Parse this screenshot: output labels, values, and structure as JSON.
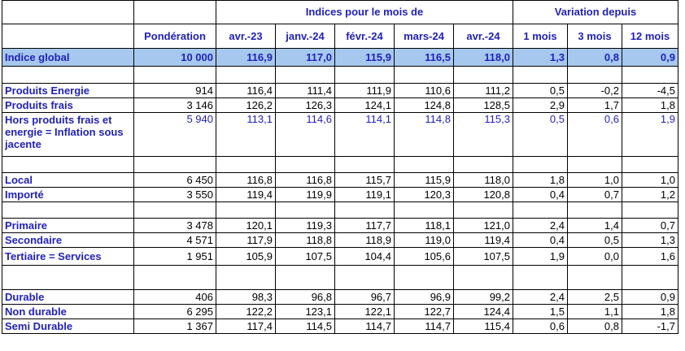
{
  "header": {
    "group_indices": "Indices pour le mois de",
    "group_variation": "Variation depuis",
    "columns": [
      "Pondération",
      "avr.-23",
      "janv.-24",
      "févr.-24",
      "mars-24",
      "avr.-24",
      "1 mois",
      "3 mois",
      "12 mois"
    ]
  },
  "rows": {
    "global": {
      "label": "Indice global",
      "values": [
        "10 000",
        "116,9",
        "117,0",
        "115,9",
        "116,5",
        "118,0",
        "1,3",
        "0,8",
        "0,9"
      ]
    },
    "energie": {
      "label": "Produits Energie",
      "values": [
        "914",
        "116,4",
        "111,4",
        "111,9",
        "110,6",
        "111,2",
        "0,5",
        "-0,2",
        "-4,5"
      ]
    },
    "frais": {
      "label": "Produits frais",
      "values": [
        "3 146",
        "126,2",
        "126,3",
        "124,1",
        "124,8",
        "128,5",
        "2,9",
        "1,7",
        "1,8"
      ]
    },
    "hors": {
      "label": "Hors produits frais et energie = Inflation sous jacente",
      "values": [
        "5 940",
        "113,1",
        "114,6",
        "114,1",
        "114,8",
        "115,3",
        "0,5",
        "0,6",
        "1,9"
      ]
    },
    "local": {
      "label": "Local",
      "values": [
        "6 450",
        "116,8",
        "116,8",
        "115,7",
        "115,9",
        "118,0",
        "1,8",
        "1,0",
        "1,0"
      ]
    },
    "importe": {
      "label": "Importé",
      "values": [
        "3 550",
        "119,4",
        "119,9",
        "119,1",
        "120,3",
        "120,8",
        "0,4",
        "0,7",
        "1,2"
      ]
    },
    "primaire": {
      "label": "Primaire",
      "values": [
        "3 478",
        "120,1",
        "119,3",
        "117,7",
        "118,1",
        "121,0",
        "2,4",
        "1,4",
        "0,7"
      ]
    },
    "secondaire": {
      "label": "Secondaire",
      "values": [
        "4 571",
        "117,9",
        "118,8",
        "118,9",
        "119,0",
        "119,4",
        "0,4",
        "0,5",
        "1,3"
      ]
    },
    "tertiaire": {
      "label": "Tertiaire = Services",
      "values": [
        "1 951",
        "105,9",
        "107,5",
        "104,4",
        "105,6",
        "107,5",
        "1,9",
        "0,0",
        "1,6"
      ]
    },
    "durable": {
      "label": "Durable",
      "values": [
        "406",
        "98,3",
        "96,8",
        "96,7",
        "96,9",
        "99,2",
        "2,4",
        "2,5",
        "0,9"
      ]
    },
    "nondurable": {
      "label": "Non durable",
      "values": [
        "6 295",
        "122,2",
        "123,1",
        "122,1",
        "122,7",
        "124,4",
        "1,5",
        "1,1",
        "1,8"
      ]
    },
    "semidurable": {
      "label": "Semi Durable",
      "values": [
        "1 367",
        "117,4",
        "114,5",
        "114,7",
        "114,7",
        "115,4",
        "0,6",
        "0,8",
        "-1,7"
      ]
    }
  },
  "colors": {
    "header_text": "#1f1fbf",
    "global_row_fill": "#a6c8ee",
    "border": "#000000"
  }
}
